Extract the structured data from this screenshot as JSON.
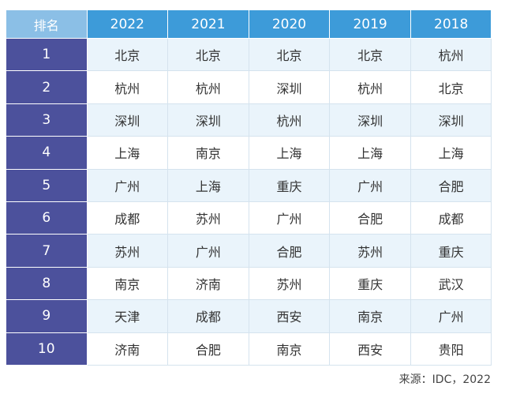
{
  "table": {
    "header_rank": "排名",
    "years": [
      "2022",
      "2021",
      "2020",
      "2019",
      "2018"
    ],
    "rows": [
      {
        "rank": "1",
        "cities": [
          "北京",
          "北京",
          "北京",
          "北京",
          "杭州"
        ]
      },
      {
        "rank": "2",
        "cities": [
          "杭州",
          "杭州",
          "深圳",
          "杭州",
          "北京"
        ]
      },
      {
        "rank": "3",
        "cities": [
          "深圳",
          "深圳",
          "杭州",
          "深圳",
          "深圳"
        ]
      },
      {
        "rank": "4",
        "cities": [
          "上海",
          "南京",
          "上海",
          "上海",
          "上海"
        ]
      },
      {
        "rank": "5",
        "cities": [
          "广州",
          "上海",
          "重庆",
          "广州",
          "合肥"
        ]
      },
      {
        "rank": "6",
        "cities": [
          "成都",
          "苏州",
          "广州",
          "合肥",
          "成都"
        ]
      },
      {
        "rank": "7",
        "cities": [
          "苏州",
          "广州",
          "合肥",
          "苏州",
          "重庆"
        ]
      },
      {
        "rank": "8",
        "cities": [
          "南京",
          "济南",
          "苏州",
          "重庆",
          "武汉"
        ]
      },
      {
        "rank": "9",
        "cities": [
          "天津",
          "成都",
          "西安",
          "南京",
          "广州"
        ]
      },
      {
        "rank": "10",
        "cities": [
          "济南",
          "合肥",
          "南京",
          "西安",
          "贵阳"
        ]
      }
    ]
  },
  "source": "来源：IDC，2022",
  "colors": {
    "header_blue": "#3d9bd9",
    "header_rank_light": "#8bbfe6",
    "rank_column": "#4c519c",
    "stripe": "#eaf4fb"
  }
}
